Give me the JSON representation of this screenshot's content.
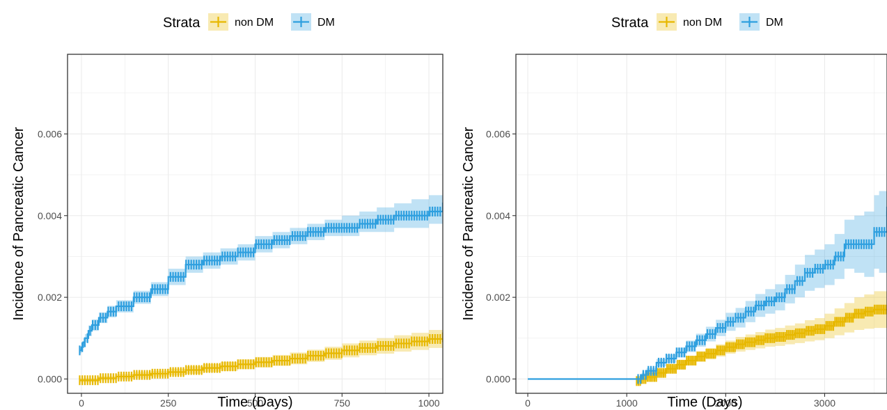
{
  "colors": {
    "non_dm": "#E7B800",
    "dm": "#2E9FDF",
    "grid": "#ebebeb",
    "panel_border": "#333333",
    "tick_text": "#4d4d4d"
  },
  "chart_data": [
    {
      "type": "line",
      "style": "step",
      "title": "",
      "xlabel": "Time (Days)",
      "ylabel": "Incidence of Pancreatic Cancer",
      "xlim": [
        -40,
        1040
      ],
      "ylim": [
        -0.00035,
        0.00795
      ],
      "xticks": [
        0,
        250,
        500,
        750,
        1000
      ],
      "yticks": [
        0.0,
        0.002,
        0.004,
        0.006
      ],
      "xtick_labels": [
        "0",
        "250",
        "500",
        "750",
        "1000"
      ],
      "ytick_labels": [
        "0.000",
        "0.002",
        "0.004",
        "0.006"
      ],
      "grid": true,
      "legend": {
        "title": "Strata",
        "position": "top",
        "entries": [
          "non DM",
          "DM"
        ]
      },
      "series": [
        {
          "name": "non DM",
          "color": "#E7B800",
          "x": [
            -5,
            0,
            50,
            100,
            150,
            200,
            250,
            300,
            350,
            400,
            450,
            500,
            550,
            600,
            650,
            700,
            750,
            800,
            850,
            900,
            950,
            1000,
            1040
          ],
          "y": [
            -3e-05,
            -3e-05,
            2e-05,
            6e-05,
            0.0001,
            0.00013,
            0.00017,
            0.00022,
            0.00027,
            0.00031,
            0.00036,
            0.00041,
            0.00045,
            0.0005,
            0.00057,
            0.00063,
            0.0007,
            0.00076,
            0.00081,
            0.00087,
            0.00092,
            0.00098,
            0.00102
          ],
          "lower": [
            -8e-05,
            -8e-05,
            -3e-05,
            0.0,
            3e-05,
            6e-05,
            9e-05,
            0.00013,
            0.00017,
            0.0002,
            0.00024,
            0.00028,
            0.00032,
            0.00036,
            0.00042,
            0.00047,
            0.00053,
            0.00058,
            0.00062,
            0.00067,
            0.00071,
            0.00076,
            0.00079
          ],
          "upper": [
            2e-05,
            2e-05,
            7e-05,
            0.00012,
            0.00017,
            0.0002,
            0.00025,
            0.00031,
            0.00037,
            0.00042,
            0.00048,
            0.00054,
            0.00059,
            0.00065,
            0.00072,
            0.00079,
            0.00087,
            0.00094,
            0.001,
            0.00107,
            0.00113,
            0.0012,
            0.00125
          ]
        },
        {
          "name": "DM",
          "color": "#2E9FDF",
          "x": [
            -5,
            0,
            5,
            10,
            20,
            30,
            50,
            75,
            100,
            150,
            200,
            250,
            300,
            350,
            400,
            450,
            500,
            550,
            600,
            650,
            700,
            750,
            800,
            850,
            900,
            950,
            1000,
            1040
          ],
          "y": [
            0.0007,
            0.00078,
            0.0009,
            0.001,
            0.00118,
            0.00132,
            0.0015,
            0.00165,
            0.00178,
            0.002,
            0.0022,
            0.0025,
            0.0028,
            0.0029,
            0.003,
            0.0031,
            0.0033,
            0.0034,
            0.0035,
            0.0036,
            0.0037,
            0.0037,
            0.0038,
            0.0039,
            0.004,
            0.004,
            0.0041,
            0.0042
          ],
          "lower": [
            0.00063,
            0.0007,
            0.0008,
            0.0009,
            0.00105,
            0.00118,
            0.00137,
            0.00151,
            0.00163,
            0.00184,
            0.00203,
            0.0023,
            0.0026,
            0.0027,
            0.0028,
            0.0029,
            0.0031,
            0.0032,
            0.0033,
            0.0034,
            0.0035,
            0.0035,
            0.0036,
            0.0036,
            0.0037,
            0.0037,
            0.0038,
            0.0039
          ],
          "upper": [
            0.00077,
            0.00086,
            0.001,
            0.0011,
            0.00131,
            0.00146,
            0.00163,
            0.00179,
            0.00193,
            0.00216,
            0.00237,
            0.0027,
            0.003,
            0.0031,
            0.0032,
            0.0033,
            0.0035,
            0.0036,
            0.0037,
            0.0038,
            0.0039,
            0.004,
            0.0041,
            0.0042,
            0.0043,
            0.0044,
            0.0045,
            0.0046
          ]
        }
      ]
    },
    {
      "type": "line",
      "style": "step",
      "title": "",
      "xlabel": "Time (Days)",
      "ylabel": "Incidence of Pancreatic Cancer",
      "xlim": [
        -120,
        3630
      ],
      "ylim": [
        -0.00035,
        0.00795
      ],
      "xticks": [
        0,
        1000,
        2000,
        3000
      ],
      "yticks": [
        0.0,
        0.002,
        0.004,
        0.006
      ],
      "xtick_labels": [
        "0",
        "1000",
        "2000",
        "3000"
      ],
      "ytick_labels": [
        "0.000",
        "0.002",
        "0.004",
        "0.006"
      ],
      "grid": true,
      "legend": {
        "title": "Strata",
        "position": "top",
        "entries": [
          "non DM",
          "DM"
        ]
      },
      "series": [
        {
          "name": "non DM",
          "color": "#E7B800",
          "x": [
            1100,
            1150,
            1200,
            1300,
            1400,
            1500,
            1600,
            1700,
            1800,
            1900,
            2000,
            2100,
            2200,
            2300,
            2400,
            2500,
            2600,
            2700,
            2800,
            2900,
            3000,
            3100,
            3200,
            3300,
            3400,
            3500,
            3630
          ],
          "y": [
            -5e-05,
            0.0,
            5e-05,
            0.00015,
            0.00025,
            0.00035,
            0.00045,
            0.00055,
            0.00062,
            0.0007,
            0.00078,
            0.00085,
            0.0009,
            0.00095,
            0.001,
            0.00103,
            0.00108,
            0.00112,
            0.00118,
            0.00122,
            0.0013,
            0.0014,
            0.0015,
            0.0016,
            0.00165,
            0.0017,
            0.0017
          ],
          "lower": [
            -8e-05,
            -4e-05,
            0.0,
            8e-05,
            0.00017,
            0.00025,
            0.00034,
            0.00042,
            0.00048,
            0.00055,
            0.00062,
            0.00067,
            0.00071,
            0.00075,
            0.00079,
            0.00081,
            0.00085,
            0.00088,
            0.00092,
            0.00095,
            0.001,
            0.00107,
            0.00114,
            0.0012,
            0.00123,
            0.00125,
            0.00125
          ],
          "upper": [
            -2e-05,
            4e-05,
            0.0001,
            0.00022,
            0.00033,
            0.00045,
            0.00056,
            0.00068,
            0.00076,
            0.00085,
            0.00094,
            0.00103,
            0.00109,
            0.00115,
            0.00121,
            0.00125,
            0.00131,
            0.00136,
            0.00144,
            0.00149,
            0.0016,
            0.00173,
            0.00186,
            0.002,
            0.00207,
            0.00215,
            0.00215
          ]
        },
        {
          "name": "DM",
          "color": "#2E9FDF",
          "x": [
            0,
            1100,
            1150,
            1200,
            1300,
            1400,
            1500,
            1600,
            1700,
            1800,
            1900,
            2000,
            2100,
            2200,
            2300,
            2400,
            2500,
            2600,
            2700,
            2800,
            2900,
            3000,
            3100,
            3200,
            3300,
            3400,
            3500,
            3550,
            3630
          ],
          "y": [
            0.0,
            0.0,
            0.0001,
            0.0002,
            0.0004,
            0.0005,
            0.00065,
            0.0008,
            0.00095,
            0.0011,
            0.00125,
            0.0014,
            0.0015,
            0.00165,
            0.0018,
            0.0019,
            0.002,
            0.0022,
            0.0024,
            0.0026,
            0.0027,
            0.0028,
            0.003,
            0.0033,
            0.0033,
            0.0033,
            0.0036,
            0.0036,
            0.0041
          ],
          "lower": [
            0.0,
            0.0,
            5e-05,
            0.00013,
            0.00031,
            0.0004,
            0.00053,
            0.00066,
            0.00079,
            0.00092,
            0.00105,
            0.00118,
            0.00126,
            0.00139,
            0.00152,
            0.0016,
            0.00168,
            0.00185,
            0.002,
            0.00216,
            0.00223,
            0.0023,
            0.00245,
            0.0027,
            0.0026,
            0.0025,
            0.0027,
            0.0026,
            0.0028
          ],
          "upper": [
            0.0,
            0.0,
            0.00015,
            0.00027,
            0.00049,
            0.0006,
            0.00077,
            0.00094,
            0.00111,
            0.00128,
            0.00145,
            0.00162,
            0.00174,
            0.00191,
            0.00208,
            0.0022,
            0.00232,
            0.00255,
            0.0028,
            0.00304,
            0.00317,
            0.0033,
            0.00355,
            0.0039,
            0.004,
            0.0041,
            0.0045,
            0.0046,
            0.0055
          ]
        }
      ]
    }
  ]
}
